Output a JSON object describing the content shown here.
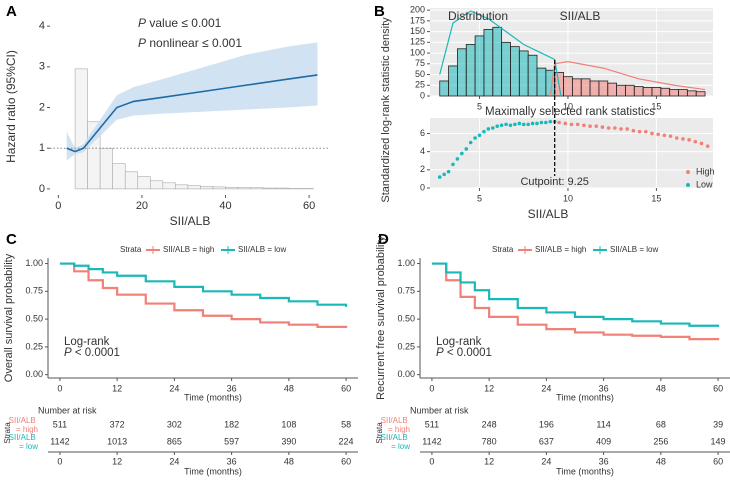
{
  "chart_data": [
    {
      "type": "spline",
      "panel": "A",
      "annotations": [
        "P value ≤ 0.001",
        "P nonlinear ≤ 0.001"
      ],
      "x_label": "SII/ALB",
      "y_label": "Hazard ratio (95%CI)",
      "x": [
        2,
        4,
        6,
        10,
        14,
        18,
        25,
        35,
        45,
        55,
        62
      ],
      "values": [
        1.0,
        0.92,
        1.0,
        1.5,
        2.0,
        2.15,
        2.25,
        2.4,
        2.55,
        2.7,
        2.8
      ],
      "lower": [
        0.7,
        0.85,
        0.9,
        1.3,
        1.7,
        1.8,
        1.85,
        1.9,
        1.95,
        2.0,
        2.05
      ],
      "upper": [
        1.4,
        1.0,
        1.1,
        1.7,
        2.3,
        2.5,
        2.7,
        3.0,
        3.3,
        3.5,
        3.6
      ],
      "color": "#1f6aa5",
      "band_color": "#c6dcef",
      "histogram": {
        "bins": [
          4,
          7,
          10,
          13,
          16,
          19,
          22,
          25,
          28,
          31,
          34,
          37,
          40,
          43,
          46,
          49,
          52,
          55,
          58,
          61
        ],
        "counts": [
          2.95,
          1.65,
          1.0,
          0.62,
          0.42,
          0.3,
          0.2,
          0.15,
          0.1,
          0.08,
          0.06,
          0.05,
          0.04,
          0.03,
          0.03,
          0.02,
          0.02,
          0.01,
          0.01
        ],
        "color": "#f4f4f4"
      },
      "reference_line": 1,
      "xlim": [
        -2,
        65
      ],
      "xticks": [
        0,
        20,
        40,
        60
      ],
      "ylim": [
        -0.15,
        4.2
      ],
      "yticks": [
        0,
        1,
        2,
        3,
        4
      ],
      "grid": false
    },
    {
      "type": "histogram",
      "panel": "B",
      "annotations": [
        "Distribution",
        "SII/ALB"
      ],
      "y_label": "Standardized log-rank statistic density",
      "series": [
        {
          "color": "#1bb8b8",
          "bins": [
            2.75,
            3.25,
            3.75,
            4.25,
            4.75,
            5.25,
            5.75,
            6.25,
            6.75,
            7.25,
            7.75,
            8.25,
            8.75,
            9.25
          ],
          "counts": [
            35,
            70,
            110,
            120,
            140,
            155,
            160,
            125,
            115,
            105,
            95,
            65,
            60
          ],
          "density_x": [
            2.75,
            3.5,
            4.5,
            5.5,
            6.5,
            7.5,
            8.5,
            9.25,
            9.6
          ],
          "density_values": [
            50,
            170,
            198,
            180,
            150,
            120,
            100,
            85,
            0
          ]
        },
        {
          "color": "#f08078",
          "bins": [
            9.25,
            9.75,
            10.25,
            10.75,
            11.25,
            11.75,
            12.25,
            12.75,
            13.25,
            13.75,
            14.25,
            14.75,
            15.25,
            15.75,
            16.25,
            16.75,
            17.25,
            17.75
          ],
          "counts": [
            55,
            45,
            40,
            40,
            35,
            35,
            30,
            25,
            25,
            22,
            20,
            20,
            18,
            15,
            15,
            12,
            10
          ],
          "density_x": [
            9.0,
            9.25,
            10,
            12,
            14,
            16,
            17.75
          ],
          "density_values": [
            0,
            75,
            80,
            65,
            40,
            25,
            15
          ]
        }
      ],
      "xlim": [
        2.2,
        18.2
      ],
      "xticks": [
        5,
        10,
        15
      ],
      "ylim": [
        0,
        205
      ],
      "yticks": [
        0,
        25,
        50,
        75,
        100,
        125,
        150,
        175,
        200
      ],
      "grid": true
    },
    {
      "type": "scatter",
      "panel": "",
      "title": "Maximally selected rank statistics",
      "x_label": "SII/ALB",
      "series": [
        {
          "name": "High",
          "color": "#f08078",
          "x": [
            9.5,
            9.85,
            10.2,
            10.55,
            10.9,
            11.25,
            11.6,
            11.95,
            12.3,
            12.65,
            13.0,
            13.35,
            13.7,
            14.05,
            14.4,
            14.75,
            15.1,
            15.45,
            15.8,
            16.15,
            16.5,
            16.85,
            17.2,
            17.55,
            17.9
          ],
          "values": [
            7.2,
            7.1,
            7.0,
            7.0,
            6.9,
            6.8,
            6.8,
            6.7,
            6.6,
            6.6,
            6.5,
            6.5,
            6.3,
            6.2,
            6.2,
            6.0,
            5.9,
            5.8,
            5.7,
            5.5,
            5.4,
            5.3,
            5.1,
            4.9,
            4.6
          ]
        },
        {
          "name": "Low",
          "color": "#1bb8b8",
          "x": [
            2.75,
            3.0,
            3.25,
            3.5,
            3.75,
            4.0,
            4.25,
            4.5,
            4.75,
            5.0,
            5.25,
            5.5,
            5.75,
            6.0,
            6.25,
            6.5,
            6.75,
            7.0,
            7.25,
            7.5,
            7.75,
            8.0,
            8.25,
            8.5,
            8.75,
            9.0,
            9.25
          ],
          "values": [
            1.2,
            1.5,
            1.8,
            2.6,
            3.2,
            3.8,
            4.3,
            5.0,
            5.5,
            5.8,
            6.2,
            6.5,
            6.6,
            6.8,
            6.9,
            7.0,
            6.9,
            7.0,
            7.1,
            7.0,
            7.0,
            7.1,
            7.1,
            7.2,
            7.2,
            7.3,
            7.3
          ]
        }
      ],
      "cutpoint": {
        "value": 9.25,
        "label": "Cutpoint: 9.25"
      },
      "legend": "bottom-right",
      "xlim": [
        2.2,
        18.2
      ],
      "xticks": [
        5,
        10,
        15
      ],
      "ylim": [
        0,
        7.7
      ],
      "yticks": [
        0,
        2,
        4,
        6
      ],
      "grid": true
    },
    {
      "type": "km",
      "panel": "C",
      "y_label": "Overall survival probability",
      "x_label": "Time (months)",
      "legend_title": "Strata",
      "x": [
        0,
        3,
        6,
        9,
        12,
        18,
        24,
        30,
        36,
        42,
        48,
        54,
        60
      ],
      "series": [
        {
          "name": "SII/ALB = high",
          "color": "#f08078",
          "values": [
            1,
            0.93,
            0.85,
            0.78,
            0.72,
            0.64,
            0.58,
            0.53,
            0.5,
            0.47,
            0.45,
            0.43,
            0.42
          ]
        },
        {
          "name": "SII/ALB = low",
          "color": "#1bb8b8",
          "values": [
            1,
            0.98,
            0.95,
            0.92,
            0.89,
            0.84,
            0.79,
            0.75,
            0.72,
            0.69,
            0.66,
            0.63,
            0.61
          ]
        }
      ],
      "annotations": [
        "Log-rank",
        "P < 0.0001"
      ],
      "xlim": [
        -2.5,
        62.5
      ],
      "xticks": [
        0,
        12,
        24,
        36,
        48,
        60
      ],
      "ylim": [
        -0.03,
        1.05
      ],
      "yticks": [
        {
          "value": 0,
          "label": "0.00"
        },
        {
          "value": 0.25,
          "label": "0.25"
        },
        {
          "value": 0.5,
          "label": "0.50"
        },
        {
          "value": 0.75,
          "label": "0.75"
        },
        {
          "value": 1,
          "label": "1.00"
        }
      ],
      "grid": false,
      "risk_table": {
        "title": "Number at risk",
        "y_label": "Strata",
        "x_label": "Time (months)",
        "times": [
          0,
          12,
          24,
          36,
          48,
          60
        ],
        "rows": [
          {
            "label": "SII/ALB = high",
            "values": [
              511,
              372,
              302,
              182,
              108,
              58
            ]
          },
          {
            "label": "SII/ALB = low",
            "values": [
              1142,
              1013,
              865,
              597,
              390,
              224
            ]
          }
        ]
      }
    },
    {
      "type": "km",
      "panel": "D",
      "y_label": "Recurrent free survival probability",
      "x_label": "Time (months)",
      "legend_title": "Strata",
      "x": [
        0,
        3,
        6,
        9,
        12,
        18,
        24,
        30,
        36,
        42,
        48,
        54,
        60
      ],
      "series": [
        {
          "name": "SII/ALB = high",
          "color": "#f08078",
          "values": [
            1,
            0.85,
            0.7,
            0.6,
            0.52,
            0.45,
            0.41,
            0.38,
            0.36,
            0.35,
            0.34,
            0.32,
            0.31
          ]
        },
        {
          "name": "SII/ALB = low",
          "color": "#1bb8b8",
          "values": [
            1,
            0.92,
            0.83,
            0.76,
            0.68,
            0.6,
            0.56,
            0.52,
            0.5,
            0.48,
            0.46,
            0.44,
            0.43
          ]
        }
      ],
      "annotations": [
        "Log-rank",
        "P < 0.0001"
      ],
      "xlim": [
        -2.5,
        62.5
      ],
      "xticks": [
        0,
        12,
        24,
        36,
        48,
        60
      ],
      "ylim": [
        -0.03,
        1.05
      ],
      "yticks": [
        {
          "value": 0,
          "label": "0.00"
        },
        {
          "value": 0.25,
          "label": "0.25"
        },
        {
          "value": 0.5,
          "label": "0.50"
        },
        {
          "value": 0.75,
          "label": "0.75"
        },
        {
          "value": 1,
          "label": "1.00"
        }
      ],
      "grid": false,
      "risk_table": {
        "title": "Number at risk",
        "y_label": "Strata",
        "x_label": "Time (months)",
        "times": [
          0,
          12,
          24,
          36,
          48,
          60
        ],
        "rows": [
          {
            "label": "SII/ALB = high",
            "values": [
              511,
              248,
              196,
              114,
              68,
              39
            ]
          },
          {
            "label": "SII/ALB = low",
            "values": [
              1142,
              780,
              637,
              409,
              256,
              149
            ]
          }
        ]
      }
    }
  ]
}
